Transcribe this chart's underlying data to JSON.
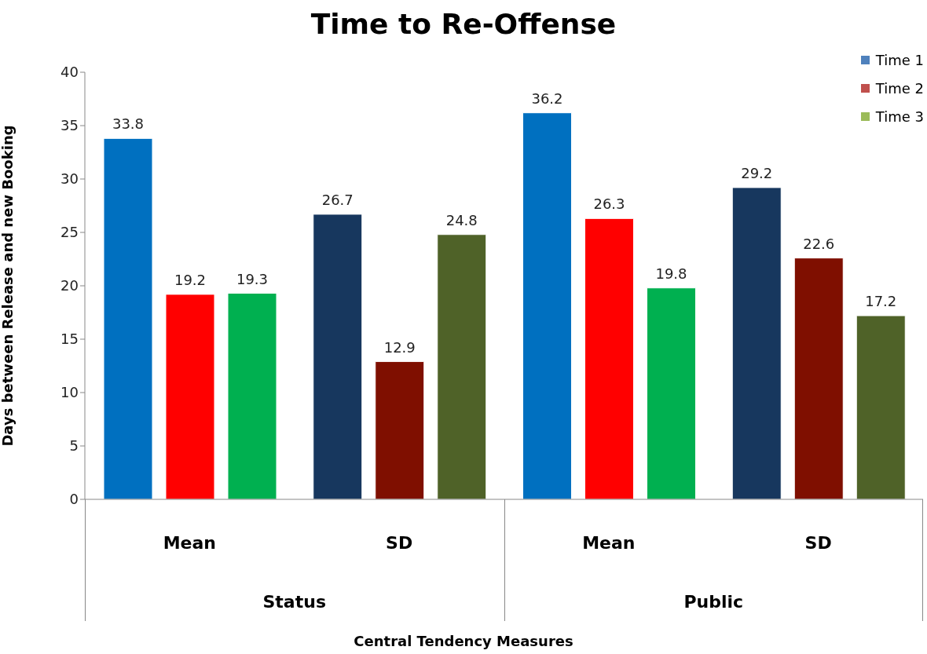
{
  "chart_data": {
    "type": "bar",
    "title": "Time to Re-Offense",
    "ylabel": "Days between Release and new Booking",
    "categories": [
      "Mean",
      "SD",
      "Mean",
      "SD"
    ],
    "annotations": [
      "Central Tendency Measures",
      "Status",
      "Public"
    ],
    "series": [
      {
        "name": "Time 1",
        "color": "#4f81bd",
        "colors": [
          "#0070c0",
          "#17375e",
          "#0070c0",
          "#17375e"
        ],
        "values": [
          33.8,
          26.7,
          36.2,
          29.2
        ]
      },
      {
        "name": "Time 2",
        "color": "#c0504d",
        "colors": [
          "#ff0000",
          "#7f0f00",
          "#ff0000",
          "#7f0f00"
        ],
        "values": [
          19.2,
          12.9,
          26.3,
          22.6
        ]
      },
      {
        "name": "Time 3",
        "color": "#9bbb59",
        "colors": [
          "#00b050",
          "#4f6228",
          "#00b050",
          "#4f6228"
        ],
        "values": [
          19.3,
          24.8,
          19.8,
          17.2
        ]
      }
    ],
    "ylim": [
      0,
      40
    ],
    "yticks": [
      0,
      5,
      10,
      15,
      20,
      25,
      30,
      35,
      40
    ],
    "grid": false,
    "legend": "top right",
    "data_labels": true
  }
}
